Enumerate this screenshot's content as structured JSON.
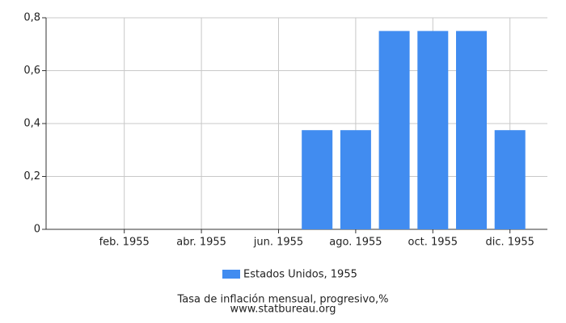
{
  "chart_data": {
    "type": "bar",
    "title": "Tasa de inflación mensual, progresivo,%",
    "subtitle": "www.statbureau.org",
    "categories": [
      null,
      "feb. 1955",
      null,
      "abr. 1955",
      null,
      "jun. 1955",
      null,
      "ago. 1955",
      null,
      "oct. 1955",
      null,
      "dic. 1955"
    ],
    "series": [
      {
        "name": "Estados Unidos, 1955",
        "color": "#418cf0",
        "values": [
          0,
          0,
          0,
          0,
          0,
          0,
          0.375,
          0.375,
          0.75,
          0.75,
          0.75,
          0.375
        ]
      }
    ],
    "ylim": [
      0,
      0.8
    ],
    "yticks": [
      0,
      {
        "value": 0.2,
        "label": "0,2"
      },
      {
        "value": 0.4,
        "label": "0,4"
      },
      {
        "value": 0.6,
        "label": "0,6"
      },
      {
        "value": 0.8,
        "label": "0,8"
      }
    ],
    "grid": true
  }
}
